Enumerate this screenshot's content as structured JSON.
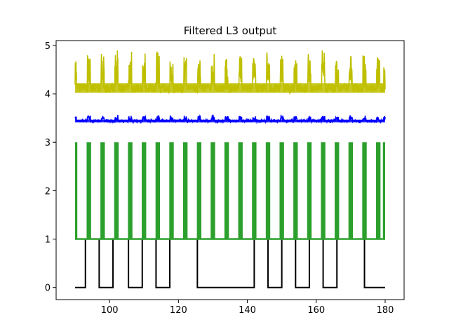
{
  "chart_data": {
    "type": "line",
    "title": "Filtered L3 output",
    "xlabel": "",
    "ylabel": "",
    "xlim": [
      84.5,
      185.5
    ],
    "ylim": [
      -0.25,
      5.1
    ],
    "x_ticks": [
      100,
      120,
      140,
      160,
      180
    ],
    "y_ticks": [
      0,
      1,
      2,
      3,
      4,
      5
    ],
    "grid": false,
    "legend": "none",
    "series": [
      {
        "color": "#000000",
        "style": "square-wave",
        "low": 0,
        "high": 1,
        "x_start": 90,
        "x_end": 180,
        "high_intervals": [
          [
            93,
            97
          ],
          [
            101,
            105.5
          ],
          [
            109.5,
            113.5
          ],
          [
            117.5,
            125.5
          ],
          [
            142,
            146
          ],
          [
            150,
            154
          ],
          [
            158,
            162
          ],
          [
            166,
            174
          ]
        ]
      },
      {
        "color": "#2ca02c",
        "style": "pulse-train",
        "baseline": 1,
        "peak": 3,
        "x_start": 90,
        "x_end": 180,
        "pulse_width": 1.3,
        "pulse_centers": [
          90,
          94,
          98,
          102,
          106,
          110,
          114,
          118,
          122,
          126,
          130,
          134,
          138,
          142,
          146,
          150,
          154,
          158,
          162,
          166,
          170,
          174,
          178,
          180
        ]
      },
      {
        "color": "#0000ff",
        "style": "noisy-band",
        "level": 3.44,
        "noise": 0.025,
        "bump_height": 0.12,
        "x_start": 90,
        "x_end": 180,
        "bump_centers": [
          90,
          94,
          98,
          102,
          106,
          110,
          114,
          118,
          122,
          126,
          130,
          134,
          138,
          142,
          146,
          150,
          154,
          158,
          162,
          166,
          170,
          174,
          178,
          180
        ]
      },
      {
        "color": "#bfbf00",
        "style": "noisy-band",
        "level": 4.12,
        "noise": 0.09,
        "bump_height": 0.75,
        "x_start": 90,
        "x_end": 180,
        "bump_centers": [
          90,
          94,
          98,
          102,
          106,
          110,
          114,
          118,
          122,
          126,
          130,
          134,
          138,
          142,
          146,
          150,
          154,
          158,
          162,
          166,
          170,
          174,
          178,
          180
        ]
      }
    ]
  }
}
